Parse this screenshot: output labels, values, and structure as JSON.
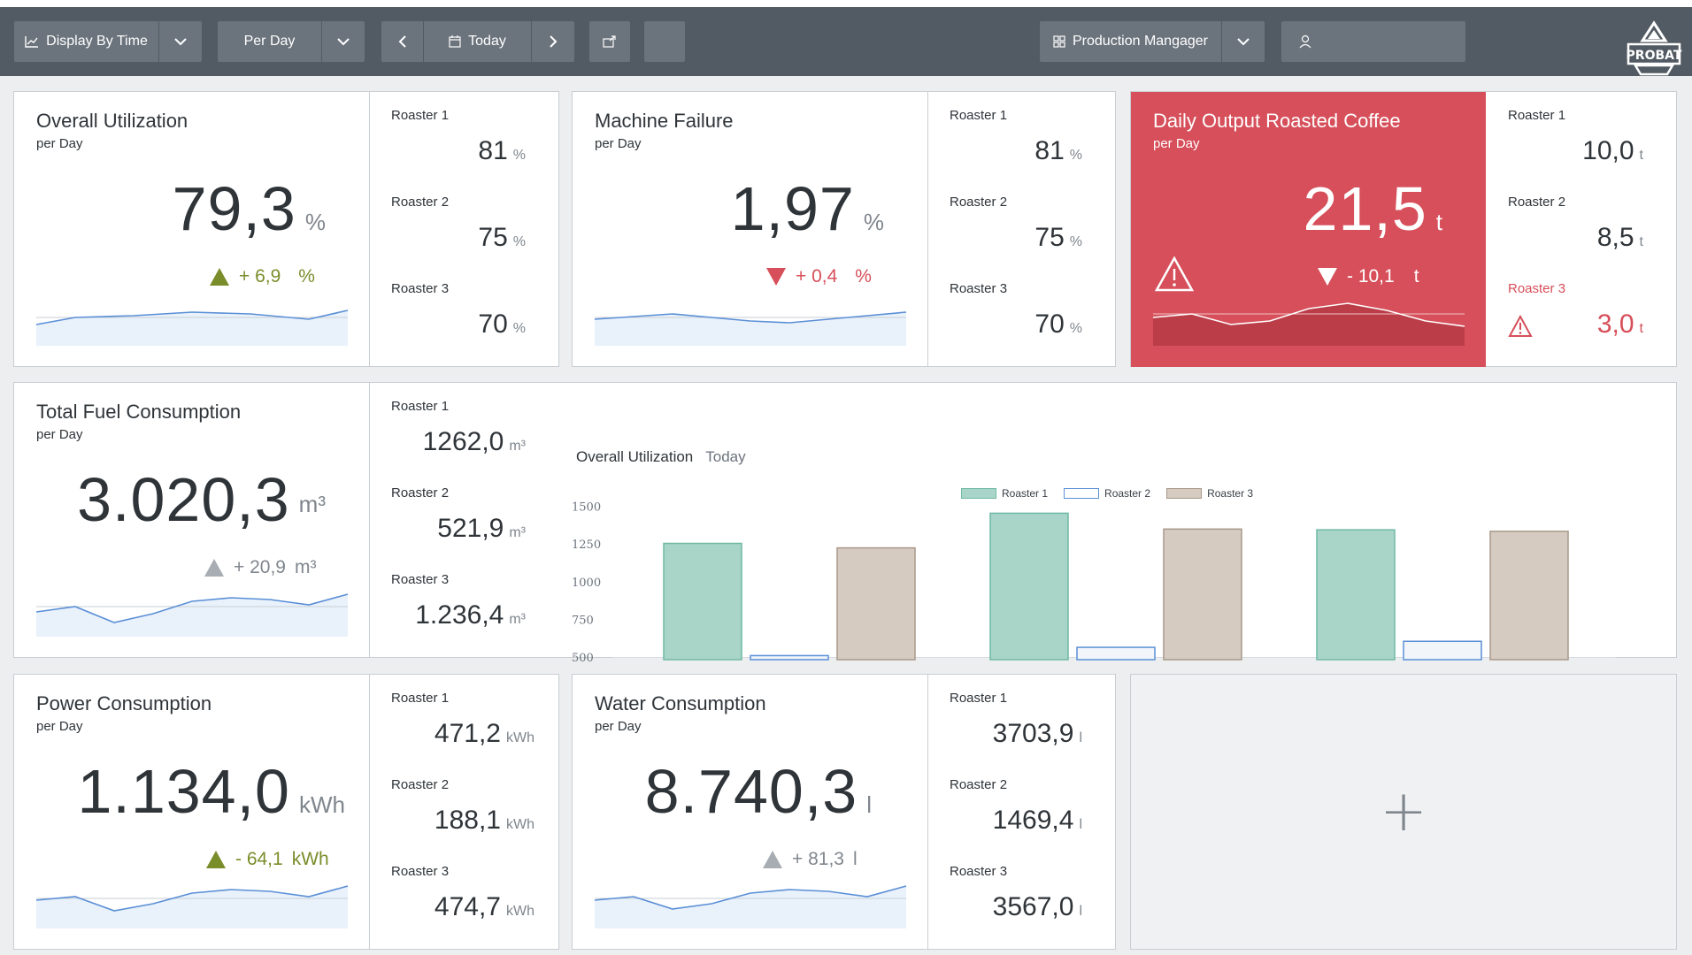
{
  "toolbar": {
    "display_by": "Display By Time",
    "period": "Per Day",
    "date": "Today",
    "user_role": "Production Mangager",
    "user_name": ""
  },
  "logo_text": "PROBAT",
  "cards": {
    "utilization": {
      "title": "Overall Utilization",
      "subtitle": "per Day",
      "value": "79,3",
      "unit": "%",
      "trend": "+ 6,9",
      "trend_unit": "%",
      "trend_dir": "up",
      "roasters": [
        {
          "label": "Roaster 1",
          "value": "81",
          "unit": "%"
        },
        {
          "label": "Roaster 2",
          "value": "75",
          "unit": "%"
        },
        {
          "label": "Roaster 3",
          "value": "70",
          "unit": "%"
        }
      ]
    },
    "failure": {
      "title": "Machine Failure",
      "subtitle": "per Day",
      "value": "1,97",
      "unit": "%",
      "trend": "+ 0,4",
      "trend_unit": "%",
      "trend_dir": "down",
      "roasters": [
        {
          "label": "Roaster 1",
          "value": "81",
          "unit": "%"
        },
        {
          "label": "Roaster 2",
          "value": "75",
          "unit": "%"
        },
        {
          "label": "Roaster 3",
          "value": "70",
          "unit": "%"
        }
      ]
    },
    "output": {
      "title": "Daily Output Roasted Coffee",
      "subtitle": "per Day",
      "value": "21,5",
      "unit": "t",
      "trend": "- 10,1",
      "trend_unit": "t",
      "trend_dir": "down",
      "roasters": [
        {
          "label": "Roaster 1",
          "value": "10,0",
          "unit": "t"
        },
        {
          "label": "Roaster 2",
          "value": "8,5",
          "unit": "t"
        },
        {
          "label": "Roaster 3",
          "value": "3,0",
          "unit": "t"
        }
      ]
    },
    "fuel": {
      "title": "Total Fuel Consumption",
      "subtitle": "per Day",
      "value": "3.020,3",
      "unit": "m³",
      "trend": "+ 20,9",
      "trend_unit": "m³",
      "trend_dir": "neutral",
      "roasters": [
        {
          "label": "Roaster 1",
          "value": "1262,0",
          "unit": "m³"
        },
        {
          "label": "Roaster 2",
          "value": "521,9",
          "unit": "m³"
        },
        {
          "label": "Roaster 3",
          "value": "1.236,4",
          "unit": "m³"
        }
      ]
    },
    "power": {
      "title": "Power Consumption",
      "subtitle": "per Day",
      "value": "1.134,0",
      "unit": "kWh",
      "trend": "- 64,1",
      "trend_unit": "kWh",
      "trend_dir": "up",
      "roasters": [
        {
          "label": "Roaster 1",
          "value": "471,2",
          "unit": "kWh"
        },
        {
          "label": "Roaster 2",
          "value": "188,1",
          "unit": "kWh"
        },
        {
          "label": "Roaster 3",
          "value": "474,7",
          "unit": "kWh"
        }
      ]
    },
    "water": {
      "title": "Water Consumption",
      "subtitle": "per Day",
      "value": "8.740,3",
      "unit": "l",
      "trend": "+ 81,3",
      "trend_unit": "l",
      "trend_dir": "neutral",
      "roasters": [
        {
          "label": "Roaster 1",
          "value": "3703,9",
          "unit": "l"
        },
        {
          "label": "Roaster 2",
          "value": "1469,4",
          "unit": "l"
        },
        {
          "label": "Roaster 3",
          "value": "3567,0",
          "unit": "l"
        }
      ]
    }
  },
  "colors": {
    "positive": "#7a8d2b",
    "negative": "#d64f5a",
    "neutral": "#a7adb3",
    "roaster1": "#a8d5c8",
    "roaster2": "#f2f6fb",
    "roaster3": "#d5cbc1"
  },
  "chart_data": {
    "type": "bar",
    "title": "Overall Utilization",
    "subtitle": "Today",
    "categories": [
      "",
      "",
      ""
    ],
    "series": [
      {
        "name": "Roaster 1",
        "values": [
          1260,
          1460,
          1350
        ]
      },
      {
        "name": "Roaster 2",
        "values": [
          515,
          570,
          610
        ]
      },
      {
        "name": "Roaster 3",
        "values": [
          1230,
          1355,
          1340
        ]
      }
    ],
    "yticks": [
      "1500",
      "1250",
      "1000",
      "750",
      "500"
    ],
    "ylim": [
      500,
      1500
    ],
    "legend": "top-center",
    "grid": false
  },
  "add_widget": "+"
}
